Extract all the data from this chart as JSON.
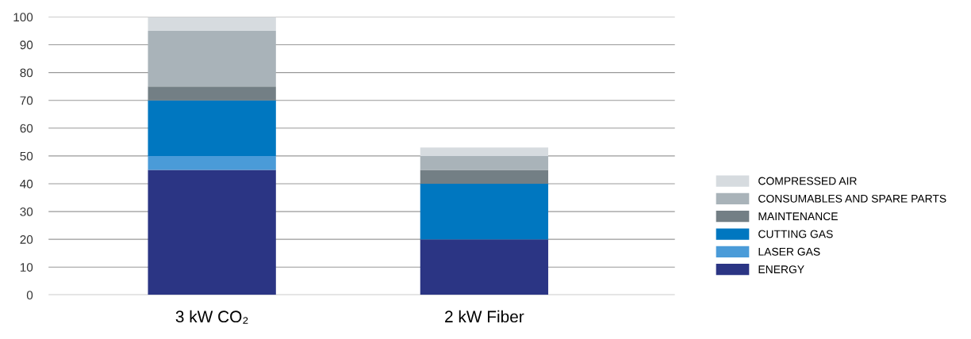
{
  "chart_data": {
    "type": "bar",
    "stacked": true,
    "categories": [
      "3 kW CO₂",
      "2 kW Fiber"
    ],
    "series": [
      {
        "name": "ENERGY",
        "color": "#2b3584",
        "values": [
          45,
          20
        ]
      },
      {
        "name": "LASER GAS",
        "color": "#4a9bd8",
        "values": [
          5,
          0
        ]
      },
      {
        "name": "CUTTING GAS",
        "color": "#0077c0",
        "values": [
          20,
          20
        ]
      },
      {
        "name": "MAINTENANCE",
        "color": "#737f85",
        "values": [
          5,
          5
        ]
      },
      {
        "name": "CONSUMABLES AND SPARE PARTS",
        "color": "#a9b3b9",
        "values": [
          20,
          5
        ]
      },
      {
        "name": "COMPRESSED AIR",
        "color": "#d6dbdf",
        "values": [
          5,
          3
        ]
      }
    ],
    "ylim": [
      0,
      100
    ],
    "yticks": [
      0,
      10,
      20,
      30,
      40,
      50,
      60,
      70,
      80,
      90,
      100
    ],
    "grid": "y",
    "legend": "right"
  }
}
